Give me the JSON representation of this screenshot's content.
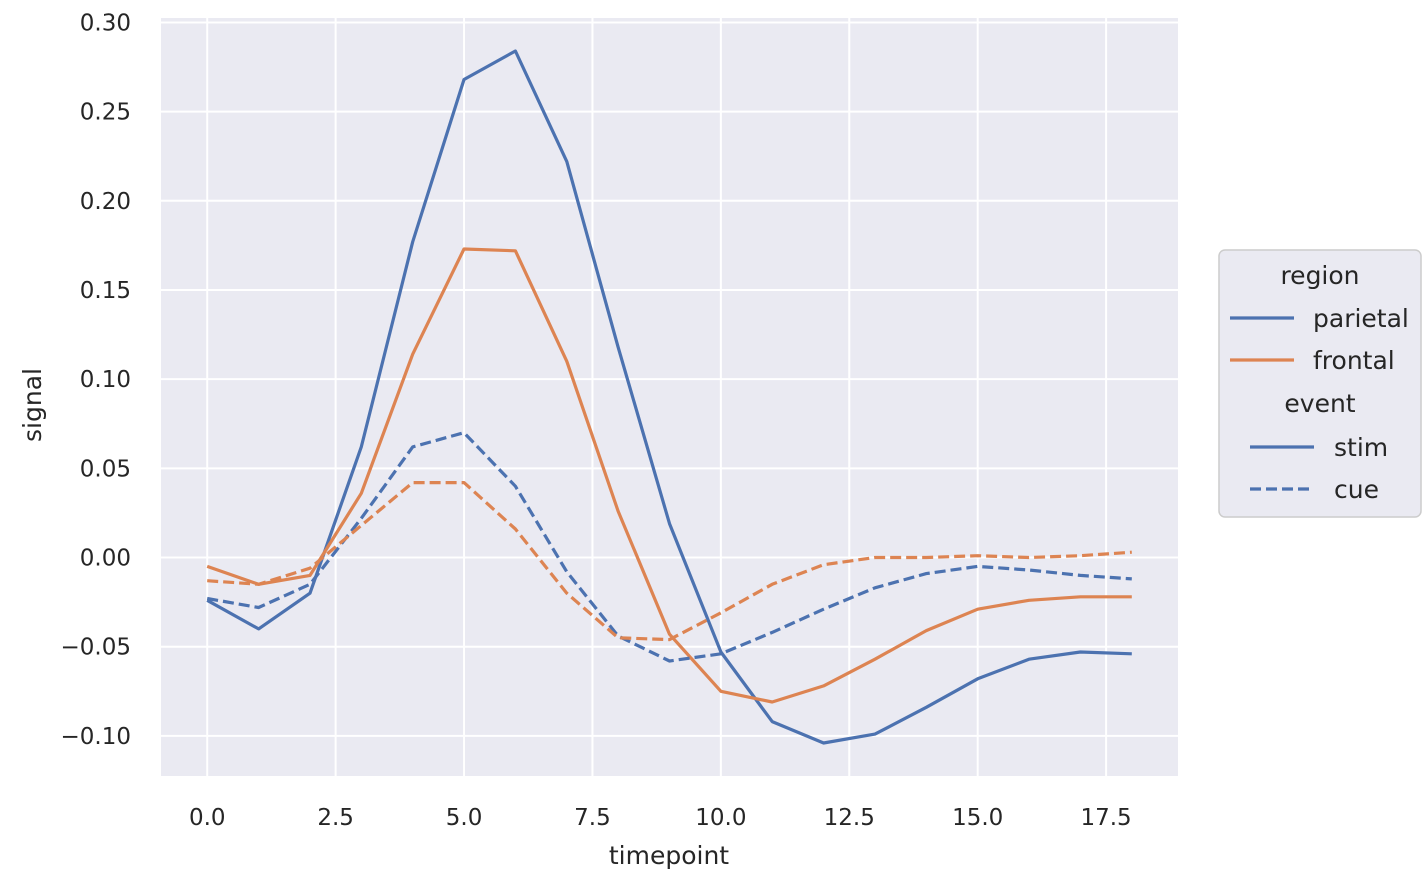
{
  "chart_data": {
    "type": "line",
    "xlabel": "timepoint",
    "ylabel": "signal",
    "xlim": [
      -0.9,
      18.9
    ],
    "ylim": [
      -0.1225,
      0.3025
    ],
    "xticks": [
      0.0,
      2.5,
      5.0,
      7.5,
      10.0,
      12.5,
      15.0,
      17.5
    ],
    "xtick_labels": [
      "0.0",
      "2.5",
      "5.0",
      "7.5",
      "10.0",
      "12.5",
      "15.0",
      "17.5"
    ],
    "yticks": [
      -0.1,
      -0.05,
      0.0,
      0.05,
      0.1,
      0.15,
      0.2,
      0.25,
      0.3
    ],
    "ytick_labels": [
      "−0.10",
      "−0.05",
      "0.00",
      "0.05",
      "0.10",
      "0.15",
      "0.20",
      "0.25",
      "0.30"
    ],
    "grid": true,
    "background": "#EAEAF2",
    "x": [
      0,
      1,
      2,
      3,
      4,
      5,
      6,
      7,
      8,
      9,
      10,
      11,
      12,
      13,
      14,
      15,
      16,
      17,
      18
    ],
    "series": [
      {
        "region": "parietal",
        "event": "stim",
        "color": "#4C72B0",
        "dash": "solid",
        "values": [
          -0.024,
          -0.04,
          -0.02,
          0.062,
          0.177,
          0.268,
          0.284,
          0.222,
          0.118,
          0.019,
          -0.053,
          -0.092,
          -0.104,
          -0.099,
          -0.084,
          -0.068,
          -0.057,
          -0.053,
          -0.054
        ]
      },
      {
        "region": "frontal",
        "event": "stim",
        "color": "#DD8452",
        "dash": "solid",
        "values": [
          -0.005,
          -0.015,
          -0.01,
          0.036,
          0.114,
          0.173,
          0.172,
          0.11,
          0.026,
          -0.043,
          -0.075,
          -0.081,
          -0.072,
          -0.057,
          -0.041,
          -0.029,
          -0.024,
          -0.022,
          -0.022
        ]
      },
      {
        "region": "parietal",
        "event": "cue",
        "color": "#4C72B0",
        "dash": "dashed",
        "values": [
          -0.023,
          -0.028,
          -0.015,
          0.022,
          0.062,
          0.07,
          0.04,
          -0.008,
          -0.044,
          -0.058,
          -0.054,
          -0.042,
          -0.029,
          -0.017,
          -0.009,
          -0.005,
          -0.007,
          -0.01,
          -0.012
        ]
      },
      {
        "region": "frontal",
        "event": "cue",
        "color": "#DD8452",
        "dash": "dashed",
        "values": [
          -0.013,
          -0.015,
          -0.006,
          0.018,
          0.042,
          0.042,
          0.016,
          -0.02,
          -0.045,
          -0.046,
          -0.031,
          -0.015,
          -0.004,
          0.0,
          0.0,
          0.001,
          0.0,
          0.001,
          0.003
        ]
      }
    ],
    "legend": {
      "placement": "right",
      "hue_title": "region",
      "hue_entries": [
        {
          "label": "parietal",
          "color": "#4C72B0"
        },
        {
          "label": "frontal",
          "color": "#DD8452"
        }
      ],
      "style_title": "event",
      "style_entries": [
        {
          "label": "stim",
          "dash": "solid"
        },
        {
          "label": "cue",
          "dash": "dashed"
        }
      ]
    }
  }
}
